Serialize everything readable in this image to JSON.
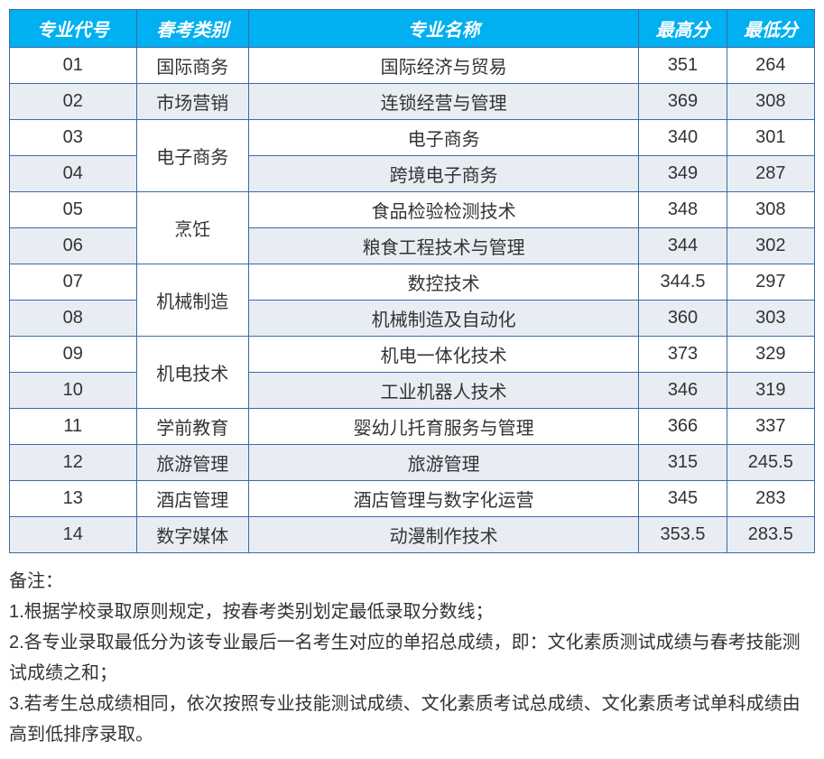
{
  "table": {
    "headers": {
      "code": "专业代号",
      "category": "春考类别",
      "name": "专业名称",
      "max": "最高分",
      "min": "最低分"
    },
    "rows": [
      {
        "code": "01",
        "category": "国际商务",
        "name": "国际经济与贸易",
        "max": "351",
        "min": "264",
        "catRowspan": 1
      },
      {
        "code": "02",
        "category": "市场营销",
        "name": "连锁经营与管理",
        "max": "369",
        "min": "308",
        "catRowspan": 1
      },
      {
        "code": "03",
        "category": "电子商务",
        "name": "电子商务",
        "max": "340",
        "min": "301",
        "catRowspan": 2
      },
      {
        "code": "04",
        "category": null,
        "name": "跨境电子商务",
        "max": "349",
        "min": "287"
      },
      {
        "code": "05",
        "category": "烹饪",
        "name": "食品检验检测技术",
        "max": "348",
        "min": "308",
        "catRowspan": 2
      },
      {
        "code": "06",
        "category": null,
        "name": "粮食工程技术与管理",
        "max": "344",
        "min": "302"
      },
      {
        "code": "07",
        "category": "机械制造",
        "name": "数控技术",
        "max": "344.5",
        "min": "297",
        "catRowspan": 2
      },
      {
        "code": "08",
        "category": null,
        "name": "机械制造及自动化",
        "max": "360",
        "min": "303"
      },
      {
        "code": "09",
        "category": "机电技术",
        "name": "机电一体化技术",
        "max": "373",
        "min": "329",
        "catRowspan": 2
      },
      {
        "code": "10",
        "category": null,
        "name": "工业机器人技术",
        "max": "346",
        "min": "319"
      },
      {
        "code": "11",
        "category": "学前教育",
        "name": "婴幼儿托育服务与管理",
        "max": "366",
        "min": "337",
        "catRowspan": 1
      },
      {
        "code": "12",
        "category": "旅游管理",
        "name": "旅游管理",
        "max": "315",
        "min": "245.5",
        "catRowspan": 1
      },
      {
        "code": "13",
        "category": "酒店管理",
        "name": "酒店管理与数字化运营",
        "max": "345",
        "min": "283",
        "catRowspan": 1
      },
      {
        "code": "14",
        "category": "数字媒体",
        "name": "动漫制作技术",
        "max": "353.5",
        "min": "283.5",
        "catRowspan": 1
      }
    ],
    "mergedCellBg": {
      "03": "merged-white",
      "05": "merged-white",
      "07": "merged-white",
      "09": "merged-white"
    }
  },
  "notes": {
    "title": "备注：",
    "items": [
      "1.根据学校录取原则规定，按春考类别划定最低录取分数线；",
      "2.各专业录取最低分为该专业最后一名考生对应的单招总成绩，即：文化素质测试成绩与春考技能测试成绩之和；",
      "3.若考生总成绩相同，依次按照专业技能测试成绩、文化素质考试总成绩、文化素质考试单科成绩由高到低排序录取。"
    ]
  },
  "colors": {
    "headerBg": "#00b0f0",
    "headerText": "#ffffff",
    "border": "#3d6aa8",
    "altRowBg": "#e8edf4",
    "text": "#333333"
  }
}
